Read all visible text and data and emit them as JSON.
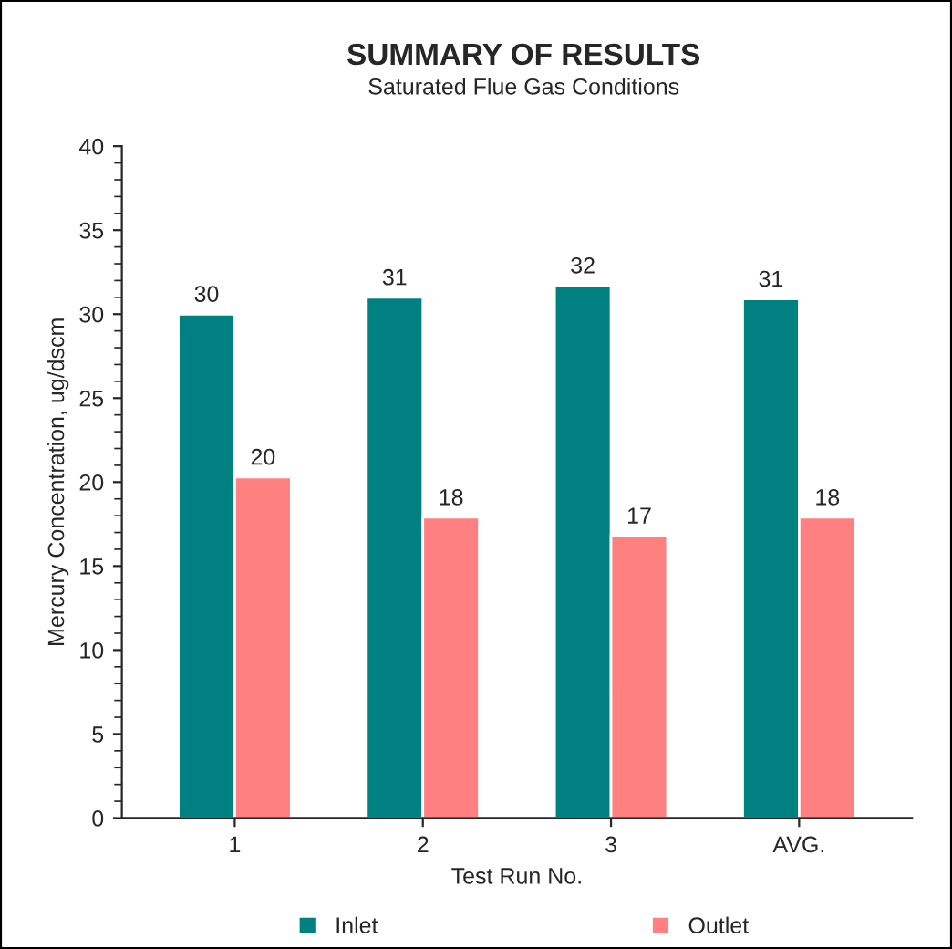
{
  "chart_data": {
    "type": "bar",
    "title": "SUMMARY OF RESULTS",
    "subtitle": "Saturated Flue Gas Conditions",
    "xlabel": "Test Run No.",
    "ylabel": "Mercury Concentration, ug/dscm",
    "categories": [
      "1",
      "2",
      "3",
      "AVG."
    ],
    "series": [
      {
        "name": "Inlet",
        "color": "#008080",
        "values": [
          30.0,
          31.0,
          31.7,
          30.9
        ],
        "value_labels": [
          "30",
          "31",
          "32",
          "31"
        ]
      },
      {
        "name": "Outlet",
        "color": "#ff8080",
        "values": [
          20.3,
          17.9,
          16.8,
          17.9
        ],
        "value_labels": [
          "20",
          "18",
          "17",
          "18"
        ]
      }
    ],
    "ylim": [
      0,
      40
    ],
    "yticks": [
      0,
      5,
      10,
      15,
      20,
      25,
      30,
      35,
      40
    ],
    "grid": false,
    "legend": "bottom"
  }
}
